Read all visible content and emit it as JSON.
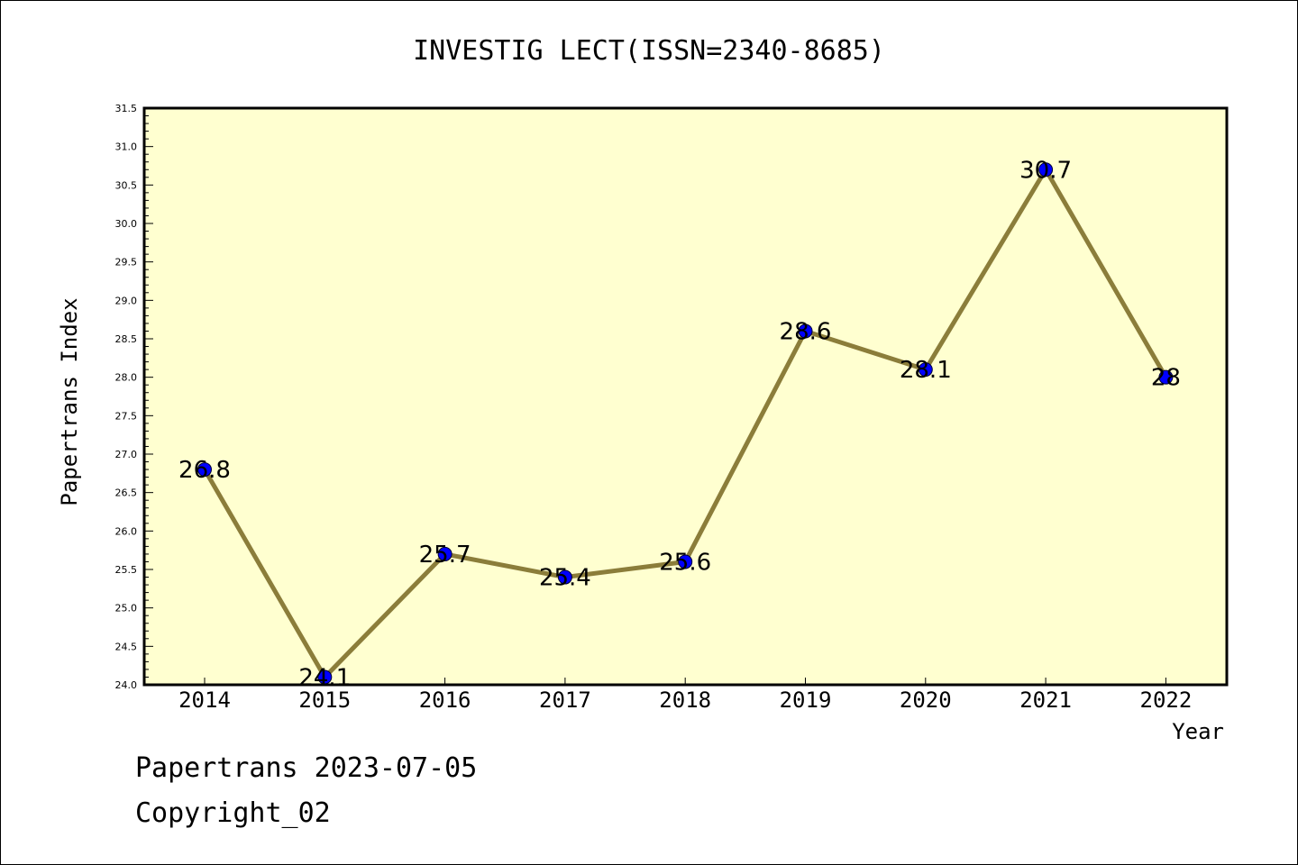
{
  "chart_data": {
    "type": "line",
    "title": "INVESTIG LECT(ISSN=2340-8685)",
    "xlabel": "Year",
    "ylabel": "Papertrans Index",
    "categories": [
      "2014",
      "2015",
      "2016",
      "2017",
      "2018",
      "2019",
      "2020",
      "2021",
      "2022"
    ],
    "values": [
      26.8,
      24.1,
      25.7,
      25.4,
      25.6,
      28.6,
      28.1,
      30.7,
      28.0
    ],
    "data_labels": [
      "26.8",
      "24.1",
      "25.7",
      "25.4",
      "25.6",
      "28.6",
      "28.1",
      "30.7",
      "28"
    ],
    "ylim": [
      24.0,
      31.5
    ],
    "yticks": [
      "24.0",
      "24.5",
      "25.0",
      "25.5",
      "26.0",
      "26.5",
      "27.0",
      "27.5",
      "28.0",
      "28.5",
      "29.0",
      "29.5",
      "30.0",
      "30.5",
      "31.0",
      "31.5"
    ],
    "grid": false,
    "legend": "none",
    "colors": {
      "plot_background": "#ffffd0",
      "line": "#8b7d3a",
      "marker": "#0000ff",
      "axis": "#000000"
    }
  },
  "footer": {
    "source": "Papertrans 2023-07-05",
    "copyright": "Copyright_02"
  }
}
